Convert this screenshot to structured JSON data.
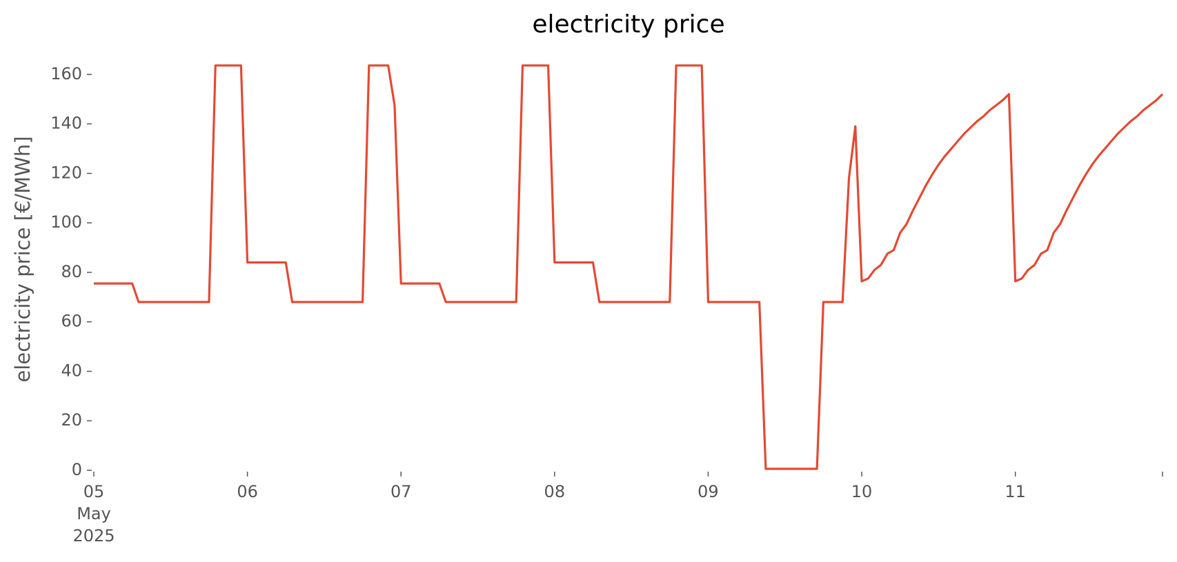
{
  "chart_data": {
    "type": "line",
    "title": "electricity price",
    "ylabel": "electricity price [€/MWh]",
    "ylim": [
      0,
      170
    ],
    "yticks": [
      0,
      20,
      40,
      60,
      80,
      100,
      120,
      140,
      160
    ],
    "xlim": [
      "2025-05-05T00:00",
      "2025-05-11T23:00"
    ],
    "xticks": [
      {
        "value": "2025-05-05T00:00",
        "label": "05",
        "sublabel": [
          "May",
          "2025"
        ]
      },
      {
        "value": "2025-05-06T00:00",
        "label": "06"
      },
      {
        "value": "2025-05-07T00:00",
        "label": "07"
      },
      {
        "value": "2025-05-08T00:00",
        "label": "08"
      },
      {
        "value": "2025-05-09T00:00",
        "label": "09"
      },
      {
        "value": "2025-05-10T00:00",
        "label": "10"
      },
      {
        "value": "2025-05-11T00:00",
        "label": "11"
      },
      {
        "value": "2025-05-11T23:00",
        "label": null
      }
    ],
    "x": [
      "2025-05-05T00:00",
      "2025-05-05T06:00",
      "2025-05-05T07:00",
      "2025-05-05T18:00",
      "2025-05-05T19:00",
      "2025-05-05T23:00",
      "2025-05-06T00:00",
      "2025-05-06T06:00",
      "2025-05-06T07:00",
      "2025-05-06T18:00",
      "2025-05-06T19:00",
      "2025-05-06T22:00",
      "2025-05-06T23:00",
      "2025-05-07T00:00",
      "2025-05-07T06:00",
      "2025-05-07T07:00",
      "2025-05-07T18:00",
      "2025-05-07T19:00",
      "2025-05-07T23:00",
      "2025-05-08T00:00",
      "2025-05-08T06:00",
      "2025-05-08T07:00",
      "2025-05-08T18:00",
      "2025-05-08T19:00",
      "2025-05-08T23:00",
      "2025-05-09T00:00",
      "2025-05-09T08:00",
      "2025-05-09T09:00",
      "2025-05-09T17:00",
      "2025-05-09T18:00",
      "2025-05-09T21:00",
      "2025-05-09T22:00",
      "2025-05-09T23:00",
      "2025-05-10T00:00",
      "2025-05-10T01:00",
      "2025-05-10T02:00",
      "2025-05-10T03:00",
      "2025-05-10T04:00",
      "2025-05-10T05:00",
      "2025-05-10T06:00",
      "2025-05-10T07:00",
      "2025-05-10T08:00",
      "2025-05-10T09:00",
      "2025-05-10T10:00",
      "2025-05-10T11:00",
      "2025-05-10T12:00",
      "2025-05-10T13:00",
      "2025-05-10T14:00",
      "2025-05-10T15:00",
      "2025-05-10T16:00",
      "2025-05-10T17:00",
      "2025-05-10T18:00",
      "2025-05-10T19:00",
      "2025-05-10T20:00",
      "2025-05-10T21:00",
      "2025-05-10T22:00",
      "2025-05-10T23:00",
      "2025-05-11T00:00",
      "2025-05-11T01:00",
      "2025-05-11T02:00",
      "2025-05-11T03:00",
      "2025-05-11T04:00",
      "2025-05-11T05:00",
      "2025-05-11T06:00",
      "2025-05-11T07:00",
      "2025-05-11T08:00",
      "2025-05-11T09:00",
      "2025-05-11T10:00",
      "2025-05-11T11:00",
      "2025-05-11T12:00",
      "2025-05-11T13:00",
      "2025-05-11T14:00",
      "2025-05-11T15:00",
      "2025-05-11T16:00",
      "2025-05-11T17:00",
      "2025-05-11T18:00",
      "2025-05-11T19:00",
      "2025-05-11T20:00",
      "2025-05-11T21:00",
      "2025-05-11T22:00",
      "2025-05-11T23:00"
    ],
    "series": [
      {
        "name": "electricity price",
        "color": "#E24A33",
        "values": [
          75.5,
          75.5,
          68,
          68,
          163.6,
          163.6,
          84,
          84,
          68,
          68,
          163.6,
          163.6,
          147.5,
          75.5,
          75.5,
          68,
          68,
          163.6,
          163.6,
          84,
          84,
          68,
          68,
          163.6,
          163.6,
          68,
          68,
          0.6,
          0.6,
          68,
          68,
          118,
          139,
          76.4,
          77.5,
          81,
          83,
          87.5,
          89,
          96,
          99.5,
          105,
          110,
          115,
          119.5,
          123.5,
          127,
          130,
          133,
          136,
          138.5,
          141,
          143,
          145.5,
          147.5,
          149.5,
          152,
          76.4,
          77.5,
          81,
          83,
          87.5,
          89,
          96,
          99.5,
          105,
          110,
          115,
          119.5,
          123.5,
          127,
          130,
          133,
          136,
          138.5,
          141,
          143,
          145.5,
          147.5,
          149.5,
          152
        ]
      }
    ]
  }
}
